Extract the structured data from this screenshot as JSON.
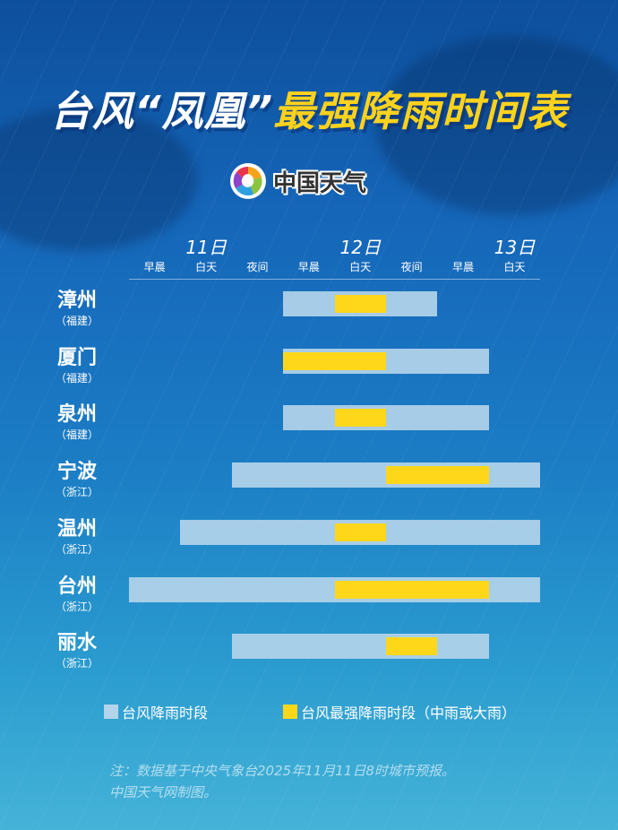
{
  "title": {
    "part1": "台风“凤凰”",
    "part2": "最强降雨时间表"
  },
  "logo": {
    "text": "中国天气"
  },
  "chart_data": {
    "type": "gantt",
    "days": [
      "11日",
      "12日",
      "13日"
    ],
    "periods": [
      {
        "day": "11日",
        "label": "早晨"
      },
      {
        "day": "11日",
        "label": "白天"
      },
      {
        "day": "11日",
        "label": "夜间"
      },
      {
        "day": "12日",
        "label": "早晨"
      },
      {
        "day": "12日",
        "label": "白天"
      },
      {
        "day": "12日",
        "label": "夜间"
      },
      {
        "day": "13日",
        "label": "早晨"
      },
      {
        "day": "13日",
        "label": "白天"
      }
    ],
    "rows": [
      {
        "city": "漳州",
        "province": "（福建）",
        "rain": [
          "12日早晨",
          "12日夜间"
        ],
        "heaviest": [
          "12日白天",
          "12日白天"
        ]
      },
      {
        "city": "厦门",
        "province": "（福建）",
        "rain": [
          "12日早晨",
          "13日早晨"
        ],
        "heaviest": [
          "12日早晨",
          "12日白天"
        ]
      },
      {
        "city": "泉州",
        "province": "（福建）",
        "rain": [
          "12日早晨",
          "13日早晨"
        ],
        "heaviest": [
          "12日白天",
          "12日白天"
        ]
      },
      {
        "city": "宁波",
        "province": "（浙江）",
        "rain": [
          "11日夜间",
          "13日白天"
        ],
        "heaviest": [
          "12日夜间",
          "13日早晨"
        ]
      },
      {
        "city": "温州",
        "province": "（浙江）",
        "rain": [
          "11日白天",
          "13日白天"
        ],
        "heaviest": [
          "12日白天",
          "12日白天"
        ]
      },
      {
        "city": "台州",
        "province": "（浙江）",
        "rain": [
          "11日早晨",
          "13日白天"
        ],
        "heaviest": [
          "12日白天",
          "13日早晨"
        ]
      },
      {
        "city": "丽水",
        "province": "（浙江）",
        "rain": [
          "11日夜间",
          "13日早晨"
        ],
        "heaviest": [
          "12日夜间",
          "12日夜间"
        ]
      }
    ],
    "legend": [
      {
        "label": "台风降雨时段",
        "color": "#b3d4ea"
      },
      {
        "label": "台风最强降雨时段（中雨或大雨）",
        "color": "#ffd71a"
      }
    ]
  },
  "note": {
    "line1": "注：数据基于中央气象台2025年11月11日8时城市预报。",
    "line2": "中国天气网制图。"
  }
}
